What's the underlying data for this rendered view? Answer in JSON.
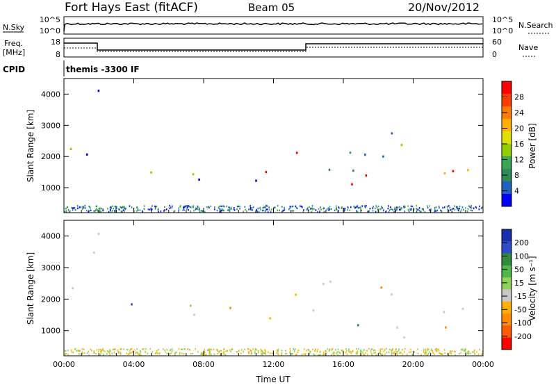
{
  "header": {
    "title": "Fort Hays East (fitACF)",
    "beam": "Beam 05",
    "date": "20/Nov/2012"
  },
  "top_panels": {
    "nsky": {
      "label": "N.Sky",
      "ticks_left": [
        "10^5",
        "10^0"
      ],
      "right_label": "N.Search",
      "ticks_right": [
        "10^5",
        "10^0"
      ]
    },
    "freq": {
      "label_line1": "Freq.",
      "label_line2": "[MHz]",
      "ticks_left": [
        "18",
        "8"
      ],
      "right_label": "Nave",
      "ticks_right": [
        "60",
        "0"
      ]
    },
    "cpid": {
      "label": "CPID",
      "value": "themis -3300 IF"
    }
  },
  "chart_data": [
    {
      "type": "heatmap",
      "panel": "power",
      "ylabel": "Slant Range [km]",
      "y_ticks": [
        1000,
        2000,
        3000,
        4000
      ],
      "ylim": [
        200,
        4500
      ],
      "xlim_hours": [
        0,
        24
      ],
      "x_ticks": [
        "00:00",
        "04:00",
        "08:00",
        "12:00",
        "16:00",
        "20:00",
        "00:00"
      ],
      "colorbar": {
        "label": "Power [dB]",
        "ticks": [
          "28",
          "24",
          "20",
          "16",
          "12",
          "8",
          "4"
        ],
        "colors": [
          "#ff0000",
          "#ff3b00",
          "#ff7a00",
          "#ffb000",
          "#e0e000",
          "#8fce00",
          "#3aa655",
          "#2e8b57",
          "#2060c0",
          "#0000ff"
        ]
      }
    },
    {
      "type": "heatmap",
      "panel": "velocity",
      "ylabel": "Slant Range [km]",
      "y_ticks": [
        1000,
        2000,
        3000,
        4000
      ],
      "ylim": [
        200,
        4500
      ],
      "xlim_hours": [
        0,
        24
      ],
      "x_ticks": [
        "00:00",
        "04:00",
        "08:00",
        "12:00",
        "16:00",
        "20:00",
        "00:00"
      ],
      "xlabel": "Time UT",
      "colorbar": {
        "label": "Velocity [m s⁻¹]",
        "ticks": [
          "200",
          "100",
          "50",
          "15",
          "-15",
          "-50",
          "-100",
          "-200"
        ],
        "colors": [
          "#1a2fb0",
          "#2d4ec8",
          "#2f8a3c",
          "#4cb84a",
          "#8fd15a",
          "#c8c8c8",
          "#ffb000",
          "#ff8c00",
          "#ff5a00",
          "#ff0000"
        ]
      }
    }
  ]
}
